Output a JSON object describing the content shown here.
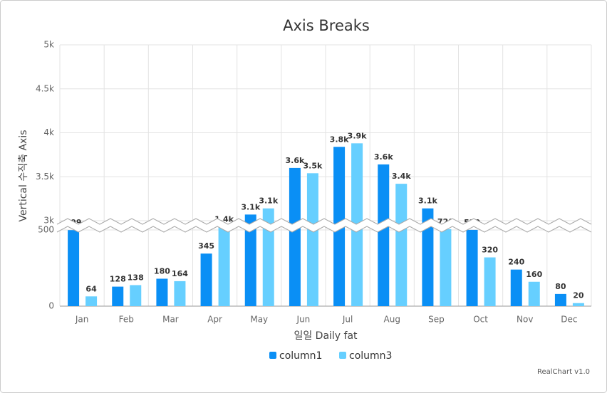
{
  "chart_data": {
    "type": "bar",
    "title": "Axis Breaks",
    "x_label": "일일 Daily fat",
    "y_label": "Vertical 수직축 Axis",
    "categories": [
      "Jan",
      "Feb",
      "Mar",
      "Apr",
      "May",
      "Jun",
      "Jul",
      "Aug",
      "Sep",
      "Oct",
      "Nov",
      "Dec"
    ],
    "series": [
      {
        "name": "column1",
        "color": "#0a8ff5",
        "values": [
          499,
          128,
          180,
          345,
          3070,
          3600,
          3840,
          3640,
          3140,
          520,
          240,
          80
        ],
        "value_labels": [
          "499",
          "128",
          "180",
          "345",
          "3.1k",
          "3.6k",
          "3.8k",
          "3.6k",
          "3.1k",
          "520",
          "240",
          "80"
        ]
      },
      {
        "name": "column3",
        "color": "#66cfff",
        "values": [
          64,
          138,
          164,
          1400,
          3140,
          3540,
          3880,
          3420,
          720,
          320,
          160,
          20
        ],
        "value_labels": [
          "64",
          "138",
          "164",
          "1.4k",
          "3.1k",
          "3.5k",
          "3.9k",
          "3.4k",
          "720",
          "320",
          "160",
          "20"
        ]
      }
    ],
    "ylim": [
      0,
      5000
    ],
    "yticks": [
      0,
      500,
      {
        "value": 3000,
        "label": "3k"
      },
      {
        "value": 3500,
        "label": "3.5k"
      },
      {
        "value": 4000,
        "label": "4k"
      },
      {
        "value": 4500,
        "label": "4.5k"
      },
      {
        "value": 5000,
        "label": "5k"
      }
    ],
    "axis_break": [
      500,
      3000
    ],
    "grid": true,
    "legend": "bottom",
    "credit": "RealChart v1.0"
  }
}
